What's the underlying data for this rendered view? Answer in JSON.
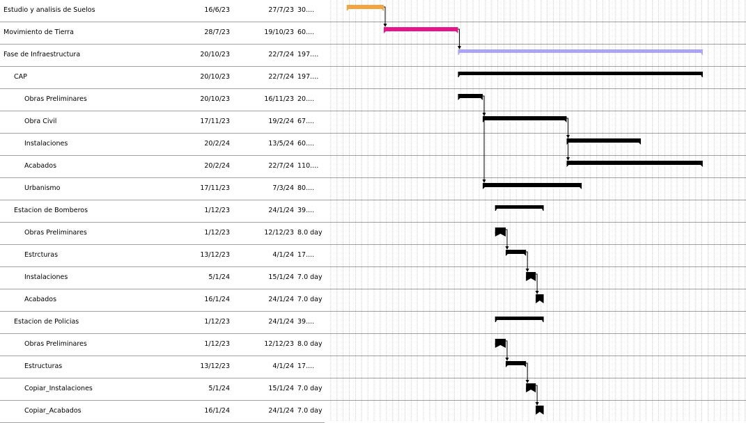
{
  "tasks": [
    {
      "name": "Estudio y analisis de Suelos",
      "start": "16/6/23",
      "end": "27/7/23",
      "duration": "30....",
      "level": 0,
      "color": "#f4a342",
      "type": "bar"
    },
    {
      "name": "Movimiento de Tierra",
      "start": "28/7/23",
      "end": "19/10/23",
      "duration": "60....",
      "level": 0,
      "color": "#e6158c",
      "type": "bar"
    },
    {
      "name": "Fase de Infraestructura",
      "start": "20/10/23",
      "end": "22/7/24",
      "duration": "197....",
      "level": 0,
      "color": "#a9a4f5",
      "type": "summary"
    },
    {
      "name": "CAP",
      "start": "20/10/23",
      "end": "22/7/24",
      "duration": "197....",
      "level": 1,
      "color": "#000000",
      "type": "summary"
    },
    {
      "name": "Obras Preliminares",
      "start": "20/10/23",
      "end": "16/11/23",
      "duration": "20....",
      "level": 2,
      "color": "#000000",
      "type": "bar"
    },
    {
      "name": "Obra Civil",
      "start": "17/11/23",
      "end": "19/2/24",
      "duration": "67....",
      "level": 2,
      "color": "#000000",
      "type": "bar"
    },
    {
      "name": "Instalaciones",
      "start": "20/2/24",
      "end": "13/5/24",
      "duration": "60....",
      "level": 2,
      "color": "#000000",
      "type": "bar"
    },
    {
      "name": "Acabados",
      "start": "20/2/24",
      "end": "22/7/24",
      "duration": "110....",
      "level": 2,
      "color": "#000000",
      "type": "bar"
    },
    {
      "name": "Urbanismo",
      "start": "17/11/23",
      "end": "7/3/24",
      "duration": "80....",
      "level": 2,
      "color": "#000000",
      "type": "bar"
    },
    {
      "name": "Estacion de Bomberos",
      "start": "1/12/23",
      "end": "24/1/24",
      "duration": "39....",
      "level": 1,
      "color": "#000000",
      "type": "summary"
    },
    {
      "name": "Obras Preliminares",
      "start": "1/12/23",
      "end": "12/12/23",
      "duration": "8.0 day",
      "level": 2,
      "color": "#000000",
      "type": "bar"
    },
    {
      "name": "Estrcturas",
      "start": "13/12/23",
      "end": "4/1/24",
      "duration": "17....",
      "level": 2,
      "color": "#000000",
      "type": "bar"
    },
    {
      "name": "Instalaciones",
      "start": "5/1/24",
      "end": "15/1/24",
      "duration": "7.0 day",
      "level": 2,
      "color": "#000000",
      "type": "bar"
    },
    {
      "name": "Acabados",
      "start": "16/1/24",
      "end": "24/1/24",
      "duration": "7.0 day",
      "level": 2,
      "color": "#000000",
      "type": "bar"
    },
    {
      "name": "Estacion de Policias",
      "start": "1/12/23",
      "end": "24/1/24",
      "duration": "39....",
      "level": 1,
      "color": "#000000",
      "type": "summary"
    },
    {
      "name": "Obras Preliminares",
      "start": "1/12/23",
      "end": "12/12/23",
      "duration": "8.0 day",
      "level": 2,
      "color": "#000000",
      "type": "bar"
    },
    {
      "name": "Estructuras",
      "start": "13/12/23",
      "end": "4/1/24",
      "duration": "17....",
      "level": 2,
      "color": "#000000",
      "type": "bar"
    },
    {
      "name": "Copiar_Instalaciones",
      "start": "5/1/24",
      "end": "15/1/24",
      "duration": "7.0 day",
      "level": 2,
      "color": "#000000",
      "type": "bar"
    },
    {
      "name": "Copiar_Acabados",
      "start": "16/1/24",
      "end": "24/1/24",
      "duration": "7.0 day",
      "level": 2,
      "color": "#000000",
      "type": "bar"
    }
  ],
  "dependencies": [
    [
      0,
      1
    ],
    [
      1,
      2
    ],
    [
      4,
      5
    ],
    [
      4,
      8
    ],
    [
      5,
      6
    ],
    [
      5,
      7
    ],
    [
      10,
      11
    ],
    [
      11,
      12
    ],
    [
      12,
      13
    ],
    [
      15,
      16
    ],
    [
      16,
      17
    ],
    [
      17,
      18
    ]
  ],
  "timeline": {
    "view_start": "22/5/23",
    "view_end": "9/9/24"
  }
}
